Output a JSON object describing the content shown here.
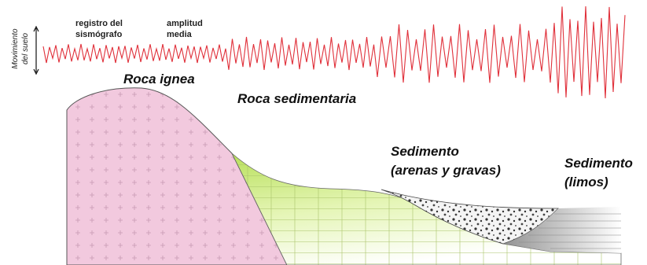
{
  "labels": {
    "ground_motion": [
      "Movimiento",
      "del suelo"
    ],
    "seismograph_record": [
      "registro del",
      "sismógrafo"
    ],
    "mean_amplitude": [
      "amplitud",
      "media"
    ],
    "igneous_rock": "Roca ignea",
    "sedimentary_rock": "Roca sedimentaria",
    "sand_gravel": [
      "Sedimento",
      "(arenas y gravas)"
    ],
    "silt": [
      "Sedimento",
      "(limos)"
    ]
  }
}
